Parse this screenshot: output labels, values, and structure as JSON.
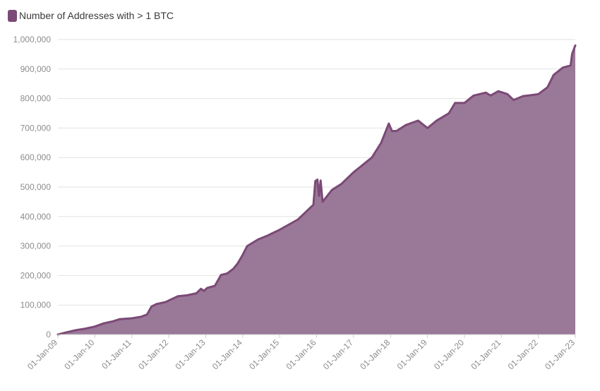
{
  "colors": {
    "series": "#7b4a76",
    "area": "#9a7898",
    "grid": "#e2e2e2",
    "tick": "#8c8c8c"
  },
  "legend": {
    "icon": "square-swatch-icon"
  },
  "chart_data": {
    "type": "area",
    "title": "",
    "xlabel": "",
    "ylabel": "",
    "legend_position": "top-left",
    "grid": true,
    "ylim": [
      0,
      1000000
    ],
    "xlim": [
      "2009-01-01",
      "2023-01-01"
    ],
    "y_ticks": [
      "0",
      "100,000",
      "200,000",
      "300,000",
      "400,000",
      "500,000",
      "600,000",
      "700,000",
      "800,000",
      "900,000",
      "1,000,000"
    ],
    "x_ticks": [
      "01-Jan-09",
      "01-Jan-10",
      "01-Jan-11",
      "01-Jan-12",
      "01-Jan-13",
      "01-Jan-14",
      "01-Jan-15",
      "01-Jan-16",
      "01-Jan-17",
      "01-Jan-18",
      "01-Jan-19",
      "01-Jan-20",
      "01-Jan-21",
      "01-Jan-22",
      "01-Jan-23"
    ],
    "series": [
      {
        "name": "Number of Addresses with > 1 BTC",
        "points": [
          [
            "2009-01-01",
            0
          ],
          [
            "2009-04-01",
            8000
          ],
          [
            "2009-07-01",
            15000
          ],
          [
            "2009-10-01",
            20000
          ],
          [
            "2010-01-01",
            27000
          ],
          [
            "2010-04-01",
            38000
          ],
          [
            "2010-07-01",
            45000
          ],
          [
            "2010-09-01",
            52000
          ],
          [
            "2011-01-01",
            55000
          ],
          [
            "2011-04-01",
            60000
          ],
          [
            "2011-06-01",
            68000
          ],
          [
            "2011-07-15",
            95000
          ],
          [
            "2011-09-01",
            103000
          ],
          [
            "2011-12-01",
            110000
          ],
          [
            "2012-04-01",
            130000
          ],
          [
            "2012-07-01",
            133000
          ],
          [
            "2012-10-01",
            140000
          ],
          [
            "2012-11-15",
            155000
          ],
          [
            "2012-12-15",
            148000
          ],
          [
            "2013-01-15",
            158000
          ],
          [
            "2013-04-01",
            165000
          ],
          [
            "2013-06-01",
            202000
          ],
          [
            "2013-08-01",
            207000
          ],
          [
            "2013-10-01",
            223000
          ],
          [
            "2013-11-15",
            242000
          ],
          [
            "2014-01-01",
            270000
          ],
          [
            "2014-02-15",
            300000
          ],
          [
            "2014-06-01",
            322000
          ],
          [
            "2014-09-01",
            335000
          ],
          [
            "2015-01-01",
            355000
          ],
          [
            "2015-07-01",
            390000
          ],
          [
            "2015-10-01",
            420000
          ],
          [
            "2015-12-01",
            440000
          ],
          [
            "2015-12-20",
            520000
          ],
          [
            "2016-01-10",
            525000
          ],
          [
            "2016-01-25",
            470000
          ],
          [
            "2016-02-10",
            522000
          ],
          [
            "2016-03-01",
            450000
          ],
          [
            "2016-06-01",
            490000
          ],
          [
            "2016-09-01",
            510000
          ],
          [
            "2017-01-01",
            550000
          ],
          [
            "2017-04-01",
            575000
          ],
          [
            "2017-07-01",
            600000
          ],
          [
            "2017-10-01",
            650000
          ],
          [
            "2017-12-15",
            715000
          ],
          [
            "2018-01-15",
            690000
          ],
          [
            "2018-03-01",
            690000
          ],
          [
            "2018-06-01",
            710000
          ],
          [
            "2018-10-01",
            725000
          ],
          [
            "2019-01-01",
            700000
          ],
          [
            "2019-04-01",
            725000
          ],
          [
            "2019-08-01",
            750000
          ],
          [
            "2019-10-01",
            785000
          ],
          [
            "2020-01-01",
            785000
          ],
          [
            "2020-04-01",
            810000
          ],
          [
            "2020-08-01",
            820000
          ],
          [
            "2020-09-15",
            810000
          ],
          [
            "2020-12-01",
            825000
          ],
          [
            "2021-03-01",
            815000
          ],
          [
            "2021-05-01",
            795000
          ],
          [
            "2021-08-01",
            808000
          ],
          [
            "2021-11-01",
            812000
          ],
          [
            "2022-01-01",
            815000
          ],
          [
            "2022-04-01",
            838000
          ],
          [
            "2022-06-01",
            880000
          ],
          [
            "2022-09-01",
            905000
          ],
          [
            "2022-11-15",
            912000
          ],
          [
            "2022-12-01",
            952000
          ],
          [
            "2023-01-01",
            980000
          ]
        ]
      }
    ]
  }
}
